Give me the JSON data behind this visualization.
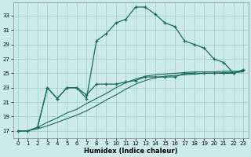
{
  "xlabel": "Humidex (Indice chaleur)",
  "bg_color": "#cceaea",
  "grid_color": "#aad4d4",
  "line_color": "#1a6b5a",
  "xlim": [
    -0.5,
    23.5
  ],
  "ylim": [
    16.0,
    34.8
  ],
  "yticks": [
    17,
    19,
    21,
    23,
    25,
    27,
    29,
    31,
    33
  ],
  "xticks": [
    0,
    1,
    2,
    3,
    4,
    5,
    6,
    7,
    8,
    9,
    10,
    11,
    12,
    13,
    14,
    15,
    16,
    17,
    18,
    19,
    20,
    21,
    22,
    23
  ],
  "line_main_x": [
    0,
    1,
    2,
    3,
    4,
    5,
    6,
    7,
    8,
    9,
    10,
    11,
    12,
    13,
    14,
    15,
    16,
    17,
    18,
    19,
    20,
    21,
    22,
    23
  ],
  "line_main_y": [
    17.0,
    17.0,
    17.5,
    23.0,
    21.5,
    23.0,
    23.0,
    21.5,
    29.5,
    30.5,
    32.0,
    32.5,
    34.2,
    34.2,
    33.2,
    32.0,
    31.5,
    29.5,
    29.0,
    28.5,
    27.0,
    26.5,
    25.0,
    25.5
  ],
  "line_mid_x": [
    2,
    3,
    4,
    5,
    6,
    7,
    8,
    9,
    10,
    11,
    12,
    13,
    14,
    15,
    16,
    17,
    18,
    19,
    20,
    21,
    22,
    23
  ],
  "line_mid_y": [
    17.5,
    23.0,
    21.5,
    23.0,
    23.0,
    22.0,
    23.5,
    23.5,
    23.5,
    23.8,
    24.0,
    24.5,
    24.5,
    24.5,
    24.5,
    25.0,
    25.0,
    25.0,
    25.0,
    25.0,
    25.0,
    25.5
  ],
  "line_diag1_x": [
    0,
    1,
    2,
    3,
    4,
    5,
    6,
    7,
    8,
    9,
    10,
    11,
    12,
    13,
    14,
    15,
    16,
    17,
    18,
    19,
    20,
    21,
    22,
    23
  ],
  "line_diag1_y": [
    17.0,
    17.0,
    17.3,
    17.7,
    18.2,
    18.7,
    19.2,
    19.8,
    20.5,
    21.3,
    22.0,
    22.8,
    23.5,
    24.0,
    24.4,
    24.6,
    24.7,
    24.8,
    24.9,
    25.0,
    25.0,
    25.1,
    25.1,
    25.2
  ],
  "line_diag2_x": [
    0,
    1,
    2,
    3,
    4,
    5,
    6,
    7,
    8,
    9,
    10,
    11,
    12,
    13,
    14,
    15,
    16,
    17,
    18,
    19,
    20,
    21,
    22,
    23
  ],
  "line_diag2_y": [
    17.0,
    17.0,
    17.5,
    18.2,
    18.8,
    19.5,
    20.0,
    20.8,
    21.5,
    22.2,
    23.0,
    23.7,
    24.2,
    24.6,
    24.8,
    24.9,
    25.0,
    25.1,
    25.2,
    25.2,
    25.2,
    25.3,
    25.3,
    25.3
  ]
}
